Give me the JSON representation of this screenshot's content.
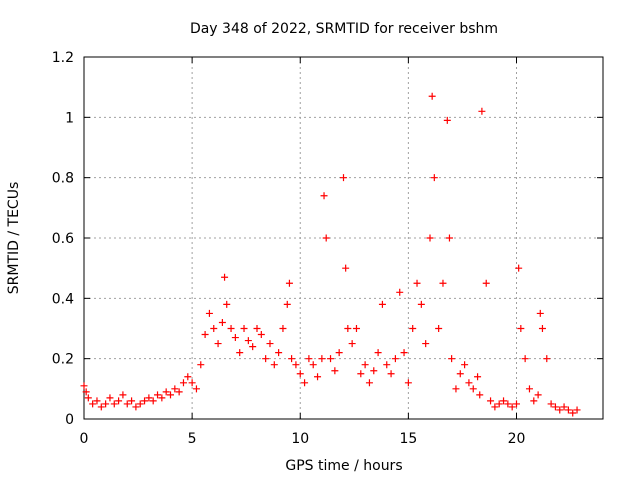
{
  "chart_data": {
    "type": "scatter",
    "title": "Day 348 of 2022, SRMTID for receiver bshm",
    "xlabel": "GPS time / hours",
    "ylabel": "SRMTID / TECUs",
    "xlim": [
      0,
      24
    ],
    "ylim": [
      0,
      1.2
    ],
    "x_ticks": [
      0,
      5,
      10,
      15,
      20
    ],
    "x_tick_labels": [
      "0",
      "5",
      "10",
      "15",
      "20"
    ],
    "y_ticks": [
      0,
      0.2,
      0.4,
      0.6,
      0.8,
      1,
      1.2
    ],
    "y_tick_labels": [
      "0",
      "0.2",
      "0.4",
      "0.6",
      "0.8",
      "1",
      "1.2"
    ],
    "grid": true,
    "marker": "+",
    "marker_color": "#ff0000",
    "series": [
      {
        "name": "SRMTID",
        "x": [
          0.0,
          0.1,
          0.2,
          0.4,
          0.6,
          0.8,
          1.0,
          1.2,
          1.4,
          1.6,
          1.8,
          2.0,
          2.2,
          2.4,
          2.6,
          2.8,
          3.0,
          3.2,
          3.4,
          3.6,
          3.8,
          4.0,
          4.2,
          4.4,
          4.6,
          4.8,
          5.0,
          5.2,
          5.4,
          5.6,
          5.8,
          6.0,
          6.2,
          6.4,
          6.5,
          6.6,
          6.8,
          7.0,
          7.2,
          7.4,
          7.6,
          7.8,
          8.0,
          8.2,
          8.4,
          8.6,
          8.8,
          9.0,
          9.2,
          9.4,
          9.5,
          9.6,
          9.8,
          10.0,
          10.2,
          10.4,
          10.6,
          10.8,
          11.0,
          11.1,
          11.2,
          11.4,
          11.6,
          11.8,
          12.0,
          12.1,
          12.2,
          12.4,
          12.6,
          12.8,
          13.0,
          13.2,
          13.4,
          13.6,
          13.8,
          14.0,
          14.2,
          14.4,
          14.6,
          14.8,
          15.0,
          15.2,
          15.4,
          15.6,
          15.8,
          16.0,
          16.1,
          16.2,
          16.4,
          16.6,
          16.8,
          16.9,
          17.0,
          17.2,
          17.4,
          17.6,
          17.8,
          18.0,
          18.2,
          18.3,
          18.4,
          18.6,
          18.8,
          19.0,
          19.2,
          19.4,
          19.6,
          19.8,
          20.0,
          20.1,
          20.2,
          20.4,
          20.6,
          20.8,
          21.0,
          21.1,
          21.2,
          21.4,
          21.6,
          21.8,
          22.0,
          22.2,
          22.4,
          22.6,
          22.8
        ],
        "y": [
          0.11,
          0.09,
          0.07,
          0.05,
          0.06,
          0.04,
          0.05,
          0.07,
          0.05,
          0.06,
          0.08,
          0.05,
          0.06,
          0.04,
          0.05,
          0.06,
          0.07,
          0.06,
          0.08,
          0.07,
          0.09,
          0.08,
          0.1,
          0.09,
          0.12,
          0.14,
          0.12,
          0.1,
          0.18,
          0.28,
          0.35,
          0.3,
          0.25,
          0.32,
          0.47,
          0.38,
          0.3,
          0.27,
          0.22,
          0.3,
          0.26,
          0.24,
          0.3,
          0.28,
          0.2,
          0.25,
          0.18,
          0.22,
          0.3,
          0.38,
          0.45,
          0.2,
          0.18,
          0.15,
          0.12,
          0.2,
          0.18,
          0.14,
          0.2,
          0.74,
          0.6,
          0.2,
          0.16,
          0.22,
          0.8,
          0.5,
          0.3,
          0.25,
          0.3,
          0.15,
          0.18,
          0.12,
          0.16,
          0.22,
          0.38,
          0.18,
          0.15,
          0.2,
          0.42,
          0.22,
          0.12,
          0.3,
          0.45,
          0.38,
          0.25,
          0.6,
          1.07,
          0.8,
          0.3,
          0.45,
          0.99,
          0.6,
          0.2,
          0.1,
          0.15,
          0.18,
          0.12,
          0.1,
          0.14,
          0.08,
          1.02,
          0.45,
          0.06,
          0.04,
          0.05,
          0.06,
          0.05,
          0.04,
          0.05,
          0.5,
          0.3,
          0.2,
          0.1,
          0.06,
          0.08,
          0.35,
          0.3,
          0.2,
          0.05,
          0.04,
          0.03,
          0.04,
          0.03,
          0.02,
          0.03
        ]
      }
    ]
  }
}
